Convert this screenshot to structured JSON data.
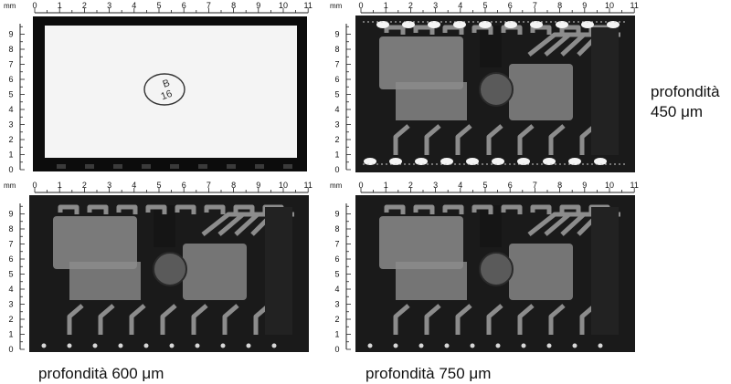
{
  "axis_unit": "mm",
  "x_ticks": [
    "0",
    "1",
    "2",
    "3",
    "4",
    "5",
    "6",
    "7",
    "8",
    "9",
    "10",
    "11"
  ],
  "y_ticks": [
    "0",
    "1",
    "2",
    "3",
    "4",
    "5",
    "6",
    "7",
    "8",
    "9"
  ],
  "package_marking": [
    "B",
    "16"
  ],
  "captions": {
    "top_right_line1": "profondità",
    "top_right_line2": "450 μm",
    "bottom_left": "profondità 600 μm",
    "bottom_right": "profondità 750 μm"
  },
  "panels": [
    {
      "id": "surface",
      "type": "optical-top-view"
    },
    {
      "id": "depth-450",
      "type": "acoustic-scan"
    },
    {
      "id": "depth-600",
      "type": "acoustic-scan"
    },
    {
      "id": "depth-750",
      "type": "acoustic-scan"
    }
  ],
  "colors": {
    "background": "#ffffff",
    "scan_dark": "#1a1a1a",
    "package_face": "#f4f4f4",
    "trace": "#8c8c8c",
    "die": "#5a5a5a"
  }
}
